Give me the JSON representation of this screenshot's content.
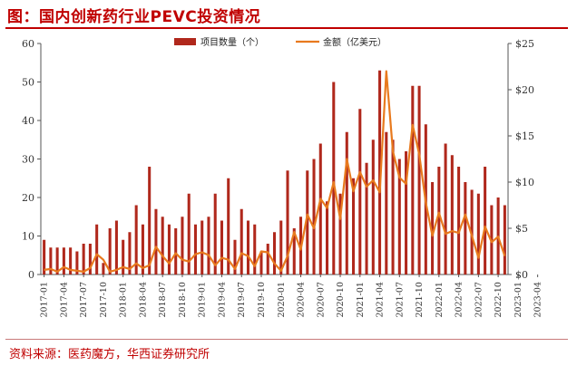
{
  "title": "图：国内创新药行业PEVC投资情况",
  "source": "资料来源：医药魔方，华西证券研究所",
  "colors": {
    "bar": "#b0281c",
    "line": "#e87a1e",
    "title": "#c00000"
  },
  "chart_data": {
    "type": "bar",
    "combo": "bar+line",
    "legend_position": "top",
    "grid": false,
    "series": [
      {
        "name": "项目数量（个）",
        "axis": "left",
        "type": "bar",
        "values": [
          9,
          7,
          7,
          7,
          7,
          6,
          8,
          8,
          13,
          3,
          12,
          14,
          9,
          11,
          18,
          13,
          28,
          17,
          15,
          13,
          12,
          15,
          21,
          13,
          14,
          15,
          21,
          14,
          25,
          9,
          17,
          14,
          13,
          6,
          8,
          11,
          14,
          27,
          12,
          15,
          27,
          30,
          34,
          19,
          50,
          21,
          37,
          25,
          43,
          29,
          35,
          53,
          37,
          35,
          30,
          32,
          49,
          49,
          39,
          24,
          28,
          34,
          31,
          28,
          24,
          22,
          21,
          28,
          18,
          20,
          18
        ]
      },
      {
        "name": "金额（亿美元）",
        "axis": "right",
        "type": "line",
        "values": [
          0.5,
          0.6,
          0.3,
          0.8,
          0.5,
          0.4,
          0.3,
          0.7,
          2.2,
          1.6,
          0.3,
          0.5,
          0.8,
          0.6,
          1.2,
          0.7,
          1.0,
          3.0,
          2.0,
          1.2,
          2.3,
          1.6,
          1.4,
          2.2,
          2.4,
          2.1,
          1.0,
          1.8,
          1.6,
          0.6,
          2.3,
          2.0,
          0.9,
          2.5,
          2.4,
          1.2,
          0.4,
          2.0,
          4.6,
          2.7,
          6.5,
          5.0,
          8.2,
          7.2,
          10.0,
          6.0,
          12.5,
          9.0,
          11.1,
          9.5,
          10.2,
          8.9,
          22.0,
          13.3,
          10.5,
          9.8,
          16.2,
          13.0,
          7.8,
          4.2,
          6.7,
          4.4,
          4.7,
          4.5,
          6.5,
          4.2,
          1.8,
          5.2,
          3.5,
          4.1,
          2.0
        ]
      }
    ],
    "x_ticks": [
      "2017-01",
      "2017-04",
      "2017-07",
      "2017-10",
      "2018-01",
      "2018-04",
      "2018-07",
      "2018-10",
      "2019-01",
      "2019-04",
      "2019-07",
      "2019-10",
      "2020-01",
      "2020-04",
      "2020-07",
      "2020-10",
      "2021-01",
      "2021-04",
      "2021-07",
      "2021-10",
      "2022-01",
      "2022-04",
      "2022-07",
      "2022-10",
      "2023-01",
      "2023-04"
    ],
    "y_left": {
      "min": 0,
      "max": 60,
      "ticks": [
        "0",
        "10",
        "20",
        "30",
        "40",
        "50",
        "60"
      ]
    },
    "y_right": {
      "min": 0,
      "max": 25,
      "ticks": [
        "$0",
        "$5",
        "$10",
        "$15",
        "$20",
        "$25"
      ]
    }
  }
}
